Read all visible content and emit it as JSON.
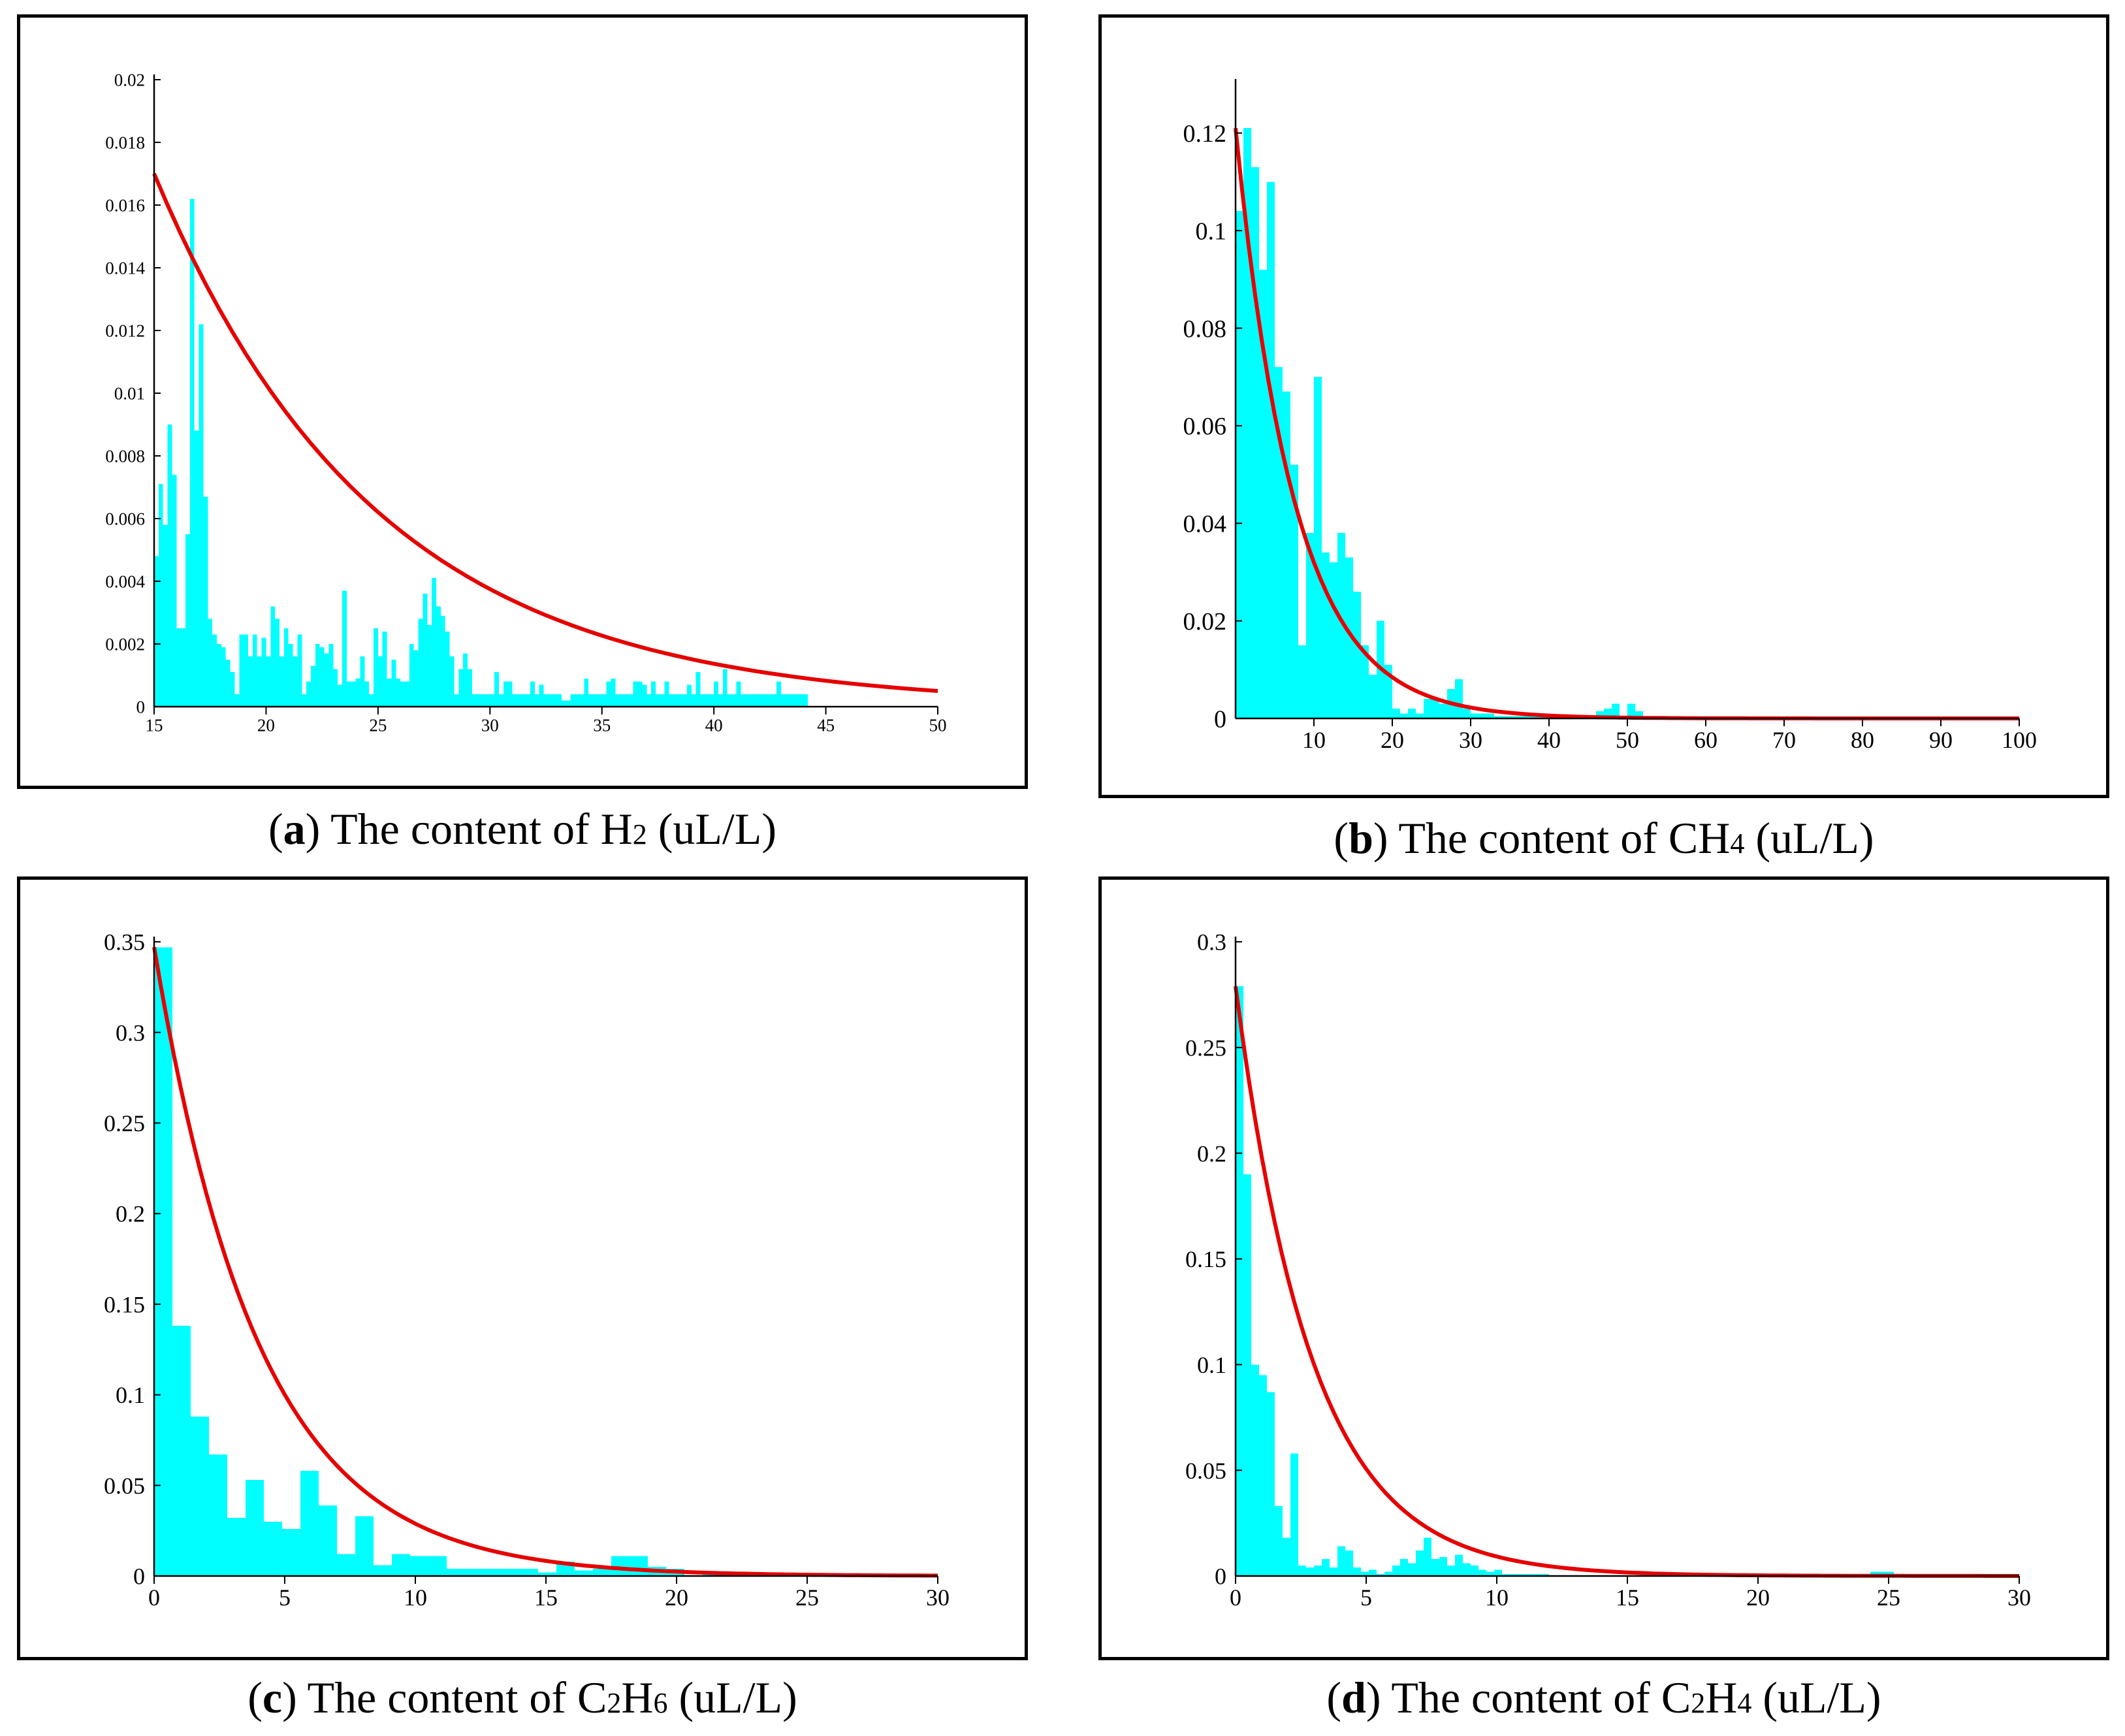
{
  "colors": {
    "bar": "#00ffff",
    "curve": "#e60000",
    "axis": "#000000"
  },
  "captions": [
    {
      "label": "a",
      "pre": "The content of H",
      "sub": "2",
      "post": " (uL/L)"
    },
    {
      "label": "b",
      "pre": "The content of CH",
      "sub": "4",
      "post": " (uL/L)"
    },
    {
      "label": "c",
      "pre": "The content of C",
      "sub1": "2",
      "mid": "H",
      "sub": "6",
      "post": " (uL/L)"
    },
    {
      "label": "d",
      "pre": "The content of C",
      "sub1": "2",
      "mid": "H",
      "sub": "4",
      "post": " (uL/L)"
    }
  ],
  "chart_data": [
    {
      "id": "a",
      "type": "bar",
      "title": "The content of H2 (uL/L)",
      "xlim": [
        15,
        50
      ],
      "ylim": [
        0,
        0.02
      ],
      "xticks": [
        15,
        20,
        25,
        30,
        35,
        40,
        45,
        50
      ],
      "xtick_labels": [
        "15",
        "20",
        "25",
        "30",
        "35",
        "40",
        "45",
        "50"
      ],
      "yticks": [
        0,
        0.002,
        0.004,
        0.006,
        0.008,
        0.01,
        0.012,
        0.014,
        0.016,
        0.018,
        0.02
      ],
      "ytick_labels": [
        "0",
        "0.002",
        "0.004",
        "0.006",
        "0.008",
        "0.01",
        "0.012",
        "0.014",
        "0.016",
        "0.018",
        "0.02"
      ],
      "bin_start": 15,
      "bin_width": 0.2,
      "values": [
        0.0048,
        0.0071,
        0.0058,
        0.009,
        0.0074,
        0.0025,
        0.0025,
        0.0055,
        0.0162,
        0.0088,
        0.0122,
        0.0067,
        0.0028,
        0.0023,
        0.002,
        0.0019,
        0.0015,
        0.0011,
        0.0004,
        0.0023,
        0.0023,
        0.0016,
        0.0023,
        0.0016,
        0.0022,
        0.0016,
        0.0032,
        0.0028,
        0.0016,
        0.0025,
        0.002,
        0.0016,
        0.0023,
        0.0004,
        0.0008,
        0.0013,
        0.002,
        0.0019,
        0.0017,
        0.002,
        0.0012,
        0.0007,
        0.0037,
        0.0008,
        0.0008,
        0.0009,
        0.0016,
        0.0008,
        0.0004,
        0.0025,
        0.0016,
        0.0024,
        0.0009,
        0.0015,
        0.0009,
        0.0008,
        0.0008,
        0.002,
        0.0018,
        0.0028,
        0.0036,
        0.0026,
        0.0041,
        0.0032,
        0.0029,
        0.0024,
        0.0016,
        0.0004,
        0.0012,
        0.0017,
        0.0012,
        0.0004,
        0.0004,
        0.0004,
        0.0004,
        0.0004,
        0.0011,
        0.0004,
        0.0008,
        0.0008,
        0.0004,
        0.0004,
        0.0004,
        0.0004,
        0.0008,
        0.0004,
        0.0007,
        0.0004,
        0.0004,
        0.0004,
        0.0004,
        0.0002,
        0.0002,
        0.0004,
        0.0004,
        0.0004,
        0.0009,
        0.0004,
        0.0004,
        0.0004,
        0.0004,
        0.0008,
        0.0009,
        0.0004,
        0.0004,
        0.0004,
        0.0004,
        0.0008,
        0.0008,
        0.0007,
        0.0004,
        0.0008,
        0.0004,
        0.0004,
        0.0008,
        0.0004,
        0.0004,
        0.0004,
        0.0004,
        0.0007,
        0.0004,
        0.0011,
        0.0004,
        0.0004,
        0.0004,
        0.0008,
        0.0004,
        0.0012,
        0.0004,
        0.0004,
        0.0008,
        0.0004,
        0.0004,
        0.0004,
        0.0004,
        0.0004,
        0.0004,
        0.0004,
        0.0004,
        0.0008,
        0.0004,
        0.0004,
        0.0004,
        0.0004,
        0.0004,
        0.0004
      ],
      "curve": {
        "kind": "exponential",
        "x0": 15,
        "y0": 0.017,
        "x1": 50,
        "y1": 0.0005,
        "samples": 60
      }
    },
    {
      "id": "b",
      "type": "bar",
      "title": "The content of CH4 (uL/L)",
      "xlim": [
        0,
        100
      ],
      "ylim": [
        0,
        0.13
      ],
      "xticks": [
        10,
        20,
        30,
        40,
        50,
        60,
        70,
        80,
        90,
        100
      ],
      "xtick_labels": [
        "10",
        "20",
        "30",
        "40",
        "50",
        "60",
        "70",
        "80",
        "90",
        "100"
      ],
      "yticks": [
        0,
        0.02,
        0.04,
        0.06,
        0.08,
        0.1,
        0.12
      ],
      "ytick_labels": [
        "0",
        "0.02",
        "0.04",
        "0.06",
        "0.08",
        "0.1",
        "0.12"
      ],
      "bin_start": 0,
      "bin_width": 1,
      "values": [
        0.104,
        0.121,
        0.113,
        0.092,
        0.11,
        0.072,
        0.067,
        0.052,
        0.015,
        0.038,
        0.07,
        0.034,
        0.032,
        0.038,
        0.033,
        0.026,
        0.015,
        0.009,
        0.02,
        0.011,
        0.002,
        0.001,
        0.002,
        0.001,
        0.004,
        0.004,
        0.003,
        0.006,
        0.008,
        0.002,
        0.001,
        0.001,
        0.001,
        0.0005,
        0.0005,
        0.0005,
        0.0005,
        0.0005,
        0.0005,
        0.0005,
        0.0005,
        0,
        0,
        0,
        0.0005,
        0,
        0.0015,
        0.002,
        0.003,
        0,
        0.003,
        0.0015,
        0,
        0,
        0,
        0,
        0,
        0,
        0,
        0,
        0,
        0,
        0,
        0,
        0,
        0,
        0,
        0,
        0,
        0,
        0,
        0,
        0,
        0,
        0,
        0,
        0,
        0,
        0,
        0,
        0,
        0,
        0,
        0,
        0,
        0,
        0,
        0,
        0,
        0,
        0,
        0,
        0,
        0,
        0,
        0,
        0,
        0,
        0,
        0,
        0
      ],
      "curve": {
        "kind": "exponential",
        "x0": 0,
        "y0": 0.121,
        "x1": 100,
        "y1": 2e-07,
        "samples": 120
      }
    },
    {
      "id": "c",
      "type": "bar",
      "title": "The content of C2H6 (uL/L)",
      "xlim": [
        0,
        30
      ],
      "ylim": [
        0,
        0.35
      ],
      "xticks": [
        0,
        5,
        10,
        15,
        20,
        25,
        30
      ],
      "xtick_labels": [
        "0",
        "5",
        "10",
        "15",
        "20",
        "25",
        "30"
      ],
      "yticks": [
        0,
        0.05,
        0.1,
        0.15,
        0.2,
        0.25,
        0.3,
        0.35
      ],
      "ytick_labels": [
        "0",
        "0.05",
        "0.1",
        "0.15",
        "0.2",
        "0.25",
        "0.3",
        "0.35"
      ],
      "bin_start": 0,
      "bin_width": 0.7,
      "values": [
        0.347,
        0.138,
        0.088,
        0.067,
        0.032,
        0.053,
        0.03,
        0.026,
        0.058,
        0.039,
        0.012,
        0.033,
        0.006,
        0.012,
        0.011,
        0.011,
        0.004,
        0.004,
        0.004,
        0.004,
        0.004,
        0.002,
        0.008,
        0.003,
        0.004,
        0.011,
        0.011,
        0.005,
        0.004,
        0,
        0.001,
        0.001,
        0.001,
        0.001,
        0.001,
        0.001,
        0.001,
        0.001,
        0,
        0,
        0,
        0,
        0
      ],
      "curve": {
        "kind": "exponential",
        "x0": 0,
        "y0": 0.347,
        "x1": 30,
        "y1": 0.0002,
        "samples": 120
      }
    },
    {
      "id": "d",
      "type": "bar",
      "title": "The content of C2H4 (uL/L)",
      "xlim": [
        0,
        30
      ],
      "ylim": [
        0,
        0.3
      ],
      "xticks": [
        0,
        5,
        10,
        15,
        20,
        25,
        30
      ],
      "xtick_labels": [
        "0",
        "5",
        "10",
        "15",
        "20",
        "25",
        "30"
      ],
      "yticks": [
        0,
        0.05,
        0.1,
        0.15,
        0.2,
        0.25,
        0.3
      ],
      "ytick_labels": [
        "0",
        "0.05",
        "0.1",
        "0.15",
        "0.2",
        "0.25",
        "0.3"
      ],
      "bin_start": 0,
      "bin_width": 0.3,
      "values": [
        0.279,
        0.19,
        0.1,
        0.095,
        0.087,
        0.033,
        0.018,
        0.058,
        0.005,
        0.004,
        0.005,
        0.008,
        0.004,
        0.014,
        0.012,
        0.004,
        0.002,
        0.003,
        0.001,
        0.002,
        0.005,
        0.008,
        0.006,
        0.012,
        0.018,
        0.008,
        0.009,
        0.005,
        0.01,
        0.006,
        0.005,
        0.003,
        0.002,
        0.003,
        0.001,
        0.001,
        0.001,
        0.001,
        0.001,
        0.001,
        0,
        0,
        0,
        0,
        0,
        0,
        0,
        0,
        0,
        0,
        0,
        0,
        0,
        0,
        0,
        0,
        0,
        0,
        0,
        0,
        0,
        0,
        0,
        0,
        0,
        0,
        0,
        0,
        0,
        0,
        0,
        0,
        0,
        0,
        0,
        0,
        0,
        0,
        0,
        0,
        0,
        0.002,
        0.002,
        0.002,
        0,
        0,
        0,
        0,
        0,
        0,
        0,
        0,
        0,
        0,
        0,
        0,
        0,
        0,
        0
      ],
      "curve": {
        "kind": "exponential",
        "x0": 0,
        "y0": 0.279,
        "x1": 30,
        "y1": 1e-05,
        "samples": 120
      }
    }
  ]
}
